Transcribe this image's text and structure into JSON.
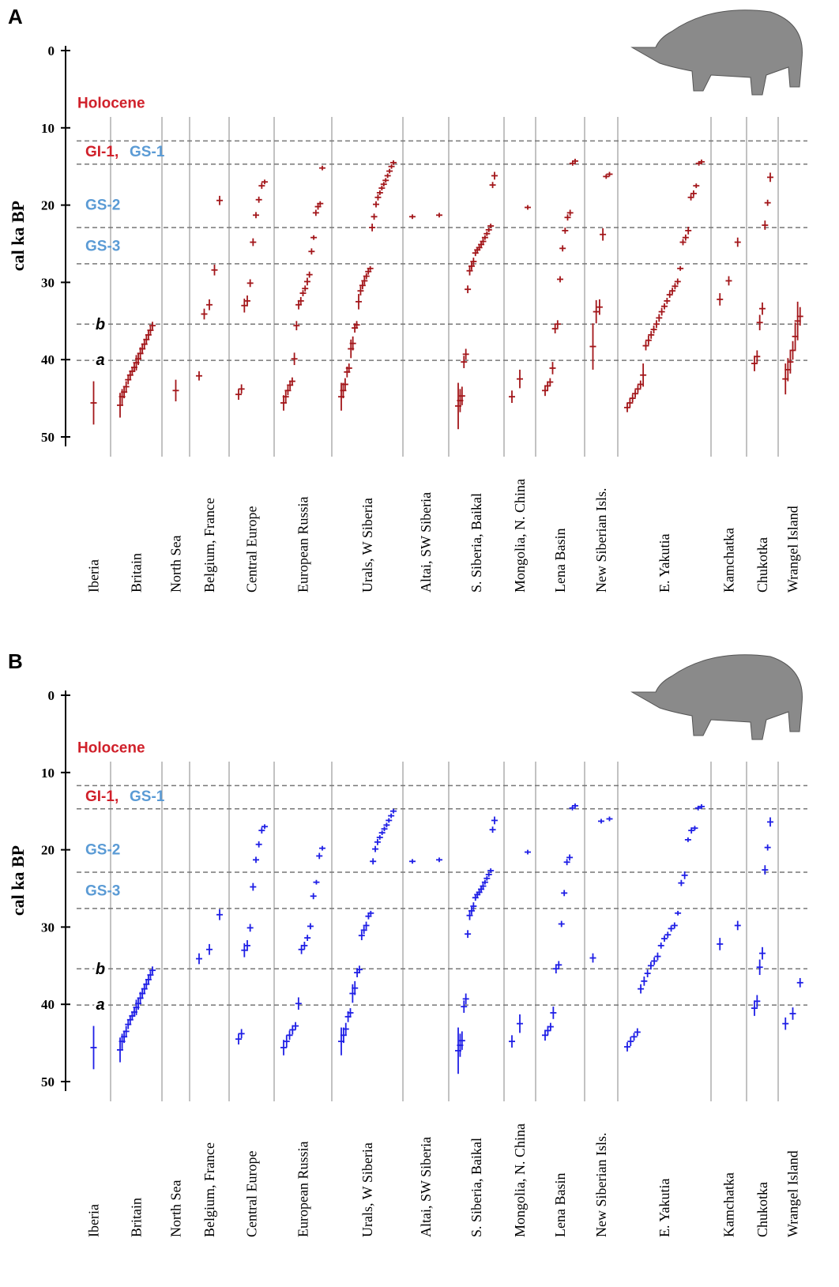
{
  "chart_data": [
    {
      "type": "scatter",
      "panel": "A",
      "y_label": "cal ka BP",
      "color": "#a3161a",
      "ylim": [
        0,
        50
      ],
      "yticks": [
        0,
        10,
        20,
        30,
        40,
        50
      ],
      "boundaries": [
        11.7,
        14.7,
        22.9,
        27.6,
        35.4,
        40.1
      ],
      "annotations": [
        {
          "text": "Holocene",
          "color": "#d0202a"
        },
        {
          "text": "GI-1,",
          "color": "#d0202a"
        },
        {
          "text": "GS-1",
          "color": "#5b9bd5"
        },
        {
          "text": "GS-2",
          "color": "#5b9bd5"
        },
        {
          "text": "GS-3",
          "color": "#5b9bd5"
        },
        {
          "text": "b",
          "color": "#000000"
        },
        {
          "text": "a",
          "color": "#000000"
        }
      ],
      "regions": [
        {
          "name": "Iberia",
          "ages": [
            45.6
          ],
          "errors": [
            2.8
          ]
        },
        {
          "name": "Britain",
          "ages": [
            45.9,
            44.8,
            44.2,
            43.5,
            42.6,
            42.0,
            41.5,
            41.0,
            40.4,
            39.9,
            39.2,
            38.6,
            38.0,
            37.4,
            36.8,
            36.2,
            35.6
          ],
          "errors": [
            1.6,
            1.0,
            0.8,
            0.7,
            0.6,
            0.6,
            0.5,
            0.6,
            1.0,
            0.8,
            0.8,
            0.7,
            0.7,
            0.6,
            0.6,
            0.5,
            0.5
          ]
        },
        {
          "name": "North Sea",
          "ages": [
            44.0
          ],
          "errors": [
            1.4
          ]
        },
        {
          "name": "Belgium, France",
          "ages": [
            42.1,
            34.1,
            32.9,
            28.4,
            19.4
          ],
          "errors": [
            0.6,
            0.7,
            0.7,
            0.7,
            0.6
          ]
        },
        {
          "name": "Central Europe",
          "ages": [
            44.5,
            43.8,
            33.0,
            32.4,
            30.1,
            24.8,
            21.3,
            19.3,
            17.5,
            17.0
          ],
          "errors": [
            0.7,
            0.6,
            0.9,
            0.7,
            0.5,
            0.5,
            0.4,
            0.4,
            0.4,
            0.3
          ]
        },
        {
          "name": "European Russia",
          "ages": [
            45.6,
            44.8,
            44.0,
            43.3,
            42.8,
            39.9,
            35.6,
            32.9,
            32.4,
            31.4,
            30.8,
            29.9,
            29.0,
            26.0,
            24.2,
            21.0,
            20.2,
            19.8,
            15.2
          ],
          "errors": [
            1.0,
            0.8,
            0.6,
            0.6,
            0.5,
            0.8,
            0.6,
            0.6,
            0.5,
            0.4,
            0.4,
            0.5,
            0.4,
            0.4,
            0.3,
            0.4,
            0.4,
            0.3,
            0.3
          ]
        },
        {
          "name": "Urals, W Siberia",
          "ages": [
            44.8,
            44.0,
            43.2,
            41.6,
            41.1,
            38.6,
            37.9,
            35.9,
            35.5,
            32.5,
            31.1,
            30.4,
            29.8,
            29.2,
            28.6,
            28.2,
            22.9,
            21.5,
            19.9,
            19.0,
            18.4,
            17.8,
            17.3,
            16.8,
            16.2,
            15.6,
            15.0,
            14.5
          ],
          "errors": [
            1.8,
            1.0,
            0.8,
            0.7,
            0.6,
            1.2,
            0.9,
            0.6,
            0.5,
            1.0,
            0.6,
            0.5,
            0.5,
            0.4,
            0.4,
            0.3,
            0.5,
            0.4,
            0.4,
            0.4,
            0.3,
            0.3,
            0.3,
            0.3,
            0.3,
            0.3,
            0.3,
            0.3
          ]
        },
        {
          "name": "Altai, SW Siberia",
          "ages": [
            21.5,
            21.3
          ],
          "errors": [
            0.3,
            0.3
          ]
        },
        {
          "name": "S. Siberia, Baikal",
          "ages": [
            46.0,
            45.3,
            44.7,
            40.3,
            39.3,
            30.9,
            28.5,
            27.9,
            27.3,
            26.2,
            25.8,
            25.5,
            25.1,
            24.7,
            24.2,
            23.7,
            23.2,
            22.7,
            17.4,
            16.2
          ],
          "errors": [
            3.0,
            1.5,
            1.2,
            0.8,
            0.7,
            0.5,
            0.6,
            0.5,
            0.5,
            0.4,
            0.4,
            0.4,
            0.4,
            0.4,
            0.3,
            0.3,
            0.3,
            0.3,
            0.4,
            0.5
          ]
        },
        {
          "name": "Mongolia, N. China",
          "ages": [
            44.8,
            42.5,
            20.3
          ],
          "errors": [
            0.8,
            1.2,
            0.3
          ]
        },
        {
          "name": "Lena Basin",
          "ages": [
            44.0,
            43.4,
            42.9,
            41.1,
            36.0,
            35.4,
            29.6,
            25.6,
            23.3,
            21.6,
            21.0,
            14.6,
            14.3
          ],
          "errors": [
            0.7,
            0.6,
            0.5,
            0.8,
            0.6,
            0.5,
            0.4,
            0.4,
            0.4,
            0.4,
            0.4,
            0.3,
            0.3
          ]
        },
        {
          "name": "New Siberian Isls.",
          "ages": [
            38.3,
            33.8,
            33.2,
            23.8,
            16.3,
            16.0
          ],
          "errors": [
            3.0,
            1.5,
            1.0,
            0.8,
            0.3,
            0.3
          ]
        },
        {
          "name": "E. Yakutia",
          "ages": [
            46.2,
            45.6,
            45.0,
            44.4,
            43.8,
            43.2,
            42.0,
            38.2,
            37.5,
            36.8,
            36.1,
            35.4,
            34.6,
            33.8,
            33.1,
            32.4,
            31.6,
            31.1,
            30.5,
            29.9,
            28.2,
            24.8,
            24.2,
            23.3,
            19.0,
            18.5,
            17.5,
            14.6,
            14.4
          ],
          "errors": [
            0.6,
            0.6,
            0.5,
            0.5,
            0.5,
            0.5,
            1.5,
            0.6,
            0.6,
            0.5,
            0.5,
            0.5,
            0.5,
            0.5,
            0.4,
            0.4,
            0.4,
            0.4,
            0.4,
            0.4,
            0.3,
            0.4,
            0.4,
            0.5,
            0.4,
            0.4,
            0.3,
            0.3,
            0.3
          ]
        },
        {
          "name": "Kamchatka",
          "ages": [
            32.2,
            29.8,
            24.8
          ],
          "errors": [
            0.8,
            0.6,
            0.6
          ]
        },
        {
          "name": "Chukotka",
          "ages": [
            40.5,
            39.6,
            35.2,
            33.4,
            22.6,
            19.7,
            16.4
          ],
          "errors": [
            1.0,
            0.8,
            1.0,
            0.8,
            0.6,
            0.4,
            0.6
          ]
        },
        {
          "name": "Wrangel Island",
          "ages": [
            42.5,
            41.3,
            40.3,
            38.8,
            37.0,
            35.0,
            34.4
          ],
          "errors": [
            2.0,
            1.5,
            1.5,
            1.2,
            1.8,
            2.5,
            1.2
          ]
        }
      ]
    },
    {
      "type": "scatter",
      "panel": "B",
      "y_label": "cal ka BP",
      "color": "#1f1fe6",
      "ylim": [
        0,
        50
      ],
      "yticks": [
        0,
        10,
        20,
        30,
        40,
        50
      ],
      "boundaries": [
        11.7,
        14.7,
        22.9,
        27.6,
        35.4,
        40.1
      ],
      "annotations": [
        {
          "text": "Holocene",
          "color": "#d0202a"
        },
        {
          "text": "GI-1,",
          "color": "#d0202a"
        },
        {
          "text": "GS-1",
          "color": "#5b9bd5"
        },
        {
          "text": "GS-2",
          "color": "#5b9bd5"
        },
        {
          "text": "GS-3",
          "color": "#5b9bd5"
        },
        {
          "text": "b",
          "color": "#000000"
        },
        {
          "text": "a",
          "color": "#000000"
        }
      ],
      "regions": [
        {
          "name": "Iberia",
          "ages": [
            45.6
          ],
          "errors": [
            2.8
          ]
        },
        {
          "name": "Britain",
          "ages": [
            45.9,
            44.8,
            44.2,
            43.5,
            42.6,
            42.0,
            41.5,
            41.0,
            40.4,
            39.9,
            39.2,
            38.6,
            38.0,
            37.4,
            36.8,
            36.2,
            35.6
          ],
          "errors": [
            1.6,
            1.0,
            0.8,
            0.7,
            0.6,
            0.6,
            0.5,
            0.6,
            1.0,
            0.8,
            0.8,
            0.7,
            0.7,
            0.6,
            0.6,
            0.5,
            0.5
          ]
        },
        {
          "name": "North Sea",
          "ages": [],
          "errors": []
        },
        {
          "name": "Belgium, France",
          "ages": [
            34.1,
            32.9,
            28.4
          ],
          "errors": [
            0.7,
            0.7,
            0.7
          ]
        },
        {
          "name": "Central Europe",
          "ages": [
            44.5,
            43.8,
            33.0,
            32.4,
            30.1,
            24.8,
            21.3,
            19.3,
            17.5,
            17.0
          ],
          "errors": [
            0.7,
            0.6,
            0.9,
            0.7,
            0.5,
            0.5,
            0.4,
            0.4,
            0.4,
            0.3
          ]
        },
        {
          "name": "European Russia",
          "ages": [
            45.6,
            44.8,
            44.0,
            43.3,
            42.8,
            39.9,
            32.9,
            32.4,
            31.4,
            29.9,
            26.0,
            24.2,
            20.8,
            19.8
          ],
          "errors": [
            1.0,
            0.8,
            0.6,
            0.6,
            0.5,
            0.8,
            0.6,
            0.5,
            0.4,
            0.4,
            0.4,
            0.3,
            0.4,
            0.3
          ]
        },
        {
          "name": "Urals, W Siberia",
          "ages": [
            44.8,
            44.0,
            43.2,
            41.6,
            41.1,
            38.6,
            37.9,
            35.9,
            35.5,
            31.1,
            30.4,
            29.8,
            28.6,
            28.2,
            21.5,
            19.9,
            19.0,
            18.4,
            17.8,
            17.3,
            16.8,
            16.2,
            15.6,
            15.0
          ],
          "errors": [
            1.8,
            1.0,
            0.8,
            0.7,
            0.6,
            1.2,
            0.9,
            0.6,
            0.5,
            0.6,
            0.5,
            0.5,
            0.4,
            0.3,
            0.4,
            0.4,
            0.4,
            0.3,
            0.3,
            0.3,
            0.3,
            0.3,
            0.3,
            0.3
          ]
        },
        {
          "name": "Altai, SW Siberia",
          "ages": [
            21.5,
            21.3
          ],
          "errors": [
            0.3,
            0.3
          ]
        },
        {
          "name": "S. Siberia, Baikal",
          "ages": [
            46.0,
            45.3,
            44.7,
            40.3,
            39.3,
            30.9,
            28.5,
            27.9,
            27.3,
            26.2,
            25.8,
            25.5,
            25.1,
            24.7,
            24.2,
            23.7,
            23.2,
            22.7,
            17.4,
            16.2
          ],
          "errors": [
            3.0,
            1.5,
            1.2,
            0.8,
            0.7,
            0.5,
            0.6,
            0.5,
            0.5,
            0.4,
            0.4,
            0.4,
            0.4,
            0.4,
            0.3,
            0.3,
            0.3,
            0.3,
            0.4,
            0.5
          ]
        },
        {
          "name": "Mongolia, N. China",
          "ages": [
            44.8,
            42.5,
            20.3
          ],
          "errors": [
            0.8,
            1.2,
            0.3
          ]
        },
        {
          "name": "Lena Basin",
          "ages": [
            44.0,
            43.4,
            42.9,
            41.1,
            35.4,
            34.9,
            29.6,
            25.6,
            21.6,
            21.0,
            14.6,
            14.3
          ],
          "errors": [
            0.7,
            0.6,
            0.5,
            0.8,
            0.6,
            0.5,
            0.4,
            0.4,
            0.4,
            0.4,
            0.3,
            0.3
          ]
        },
        {
          "name": "New Siberian Isls.",
          "ages": [
            34.0,
            16.3,
            16.0
          ],
          "errors": [
            0.6,
            0.3,
            0.3
          ]
        },
        {
          "name": "E. Yakutia",
          "ages": [
            45.5,
            44.8,
            44.2,
            43.6,
            38.0,
            37.0,
            36.0,
            35.0,
            34.4,
            33.8,
            32.4,
            31.5,
            31.0,
            30.2,
            29.8,
            28.2,
            24.3,
            23.3,
            18.7,
            17.5,
            17.2,
            14.6,
            14.4
          ],
          "errors": [
            0.6,
            0.6,
            0.5,
            0.5,
            0.6,
            0.6,
            0.5,
            0.5,
            0.5,
            0.5,
            0.4,
            0.4,
            0.4,
            0.4,
            0.4,
            0.3,
            0.4,
            0.5,
            0.3,
            0.4,
            0.3,
            0.3,
            0.3
          ]
        },
        {
          "name": "Kamchatka",
          "ages": [
            32.2,
            29.8
          ],
          "errors": [
            0.8,
            0.6
          ]
        },
        {
          "name": "Chukotka",
          "ages": [
            40.5,
            39.6,
            35.2,
            33.4,
            22.6,
            19.7,
            16.4
          ],
          "errors": [
            1.0,
            0.8,
            1.0,
            0.8,
            0.6,
            0.4,
            0.6
          ]
        },
        {
          "name": "Wrangel Island",
          "ages": [
            42.5,
            41.2,
            37.2
          ],
          "errors": [
            0.8,
            0.8,
            0.6
          ]
        }
      ]
    }
  ]
}
